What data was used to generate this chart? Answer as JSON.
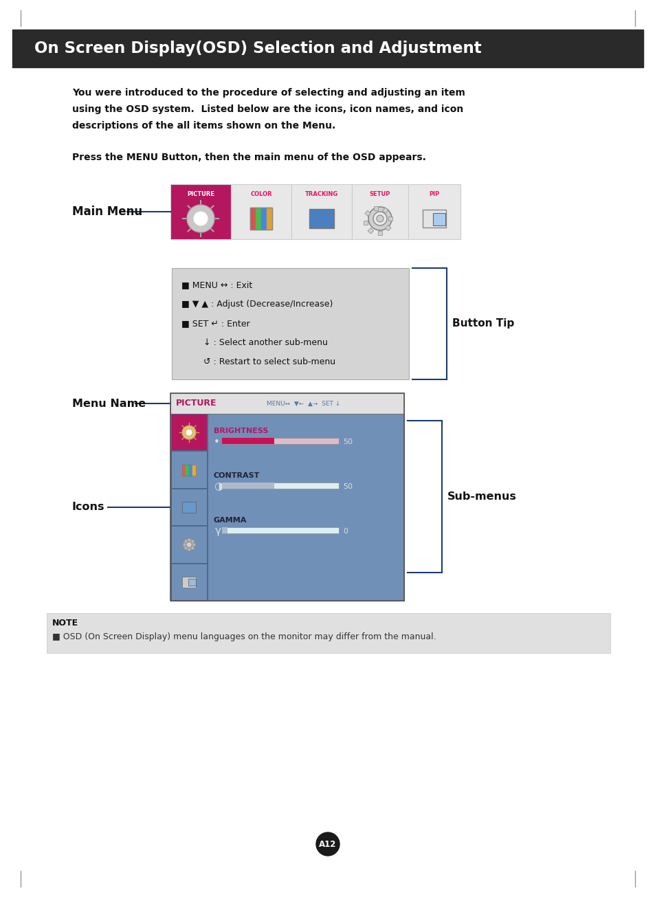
{
  "title": "On Screen Display(OSD) Selection and Adjustment",
  "title_bg": "#2a2a2a",
  "title_color": "#ffffff",
  "page_bg": "#ffffff",
  "body_text1_line1": "You were introduced to the procedure of selecting and adjusting an item",
  "body_text1_line2": "using the OSD system.  Listed below are the icons, icon names, and icon",
  "body_text1_line3": "descriptions of the all items shown on the Menu.",
  "body_text2": "Press the MENU Button, then the main menu of the OSD appears.",
  "main_menu_label": "Main Menu",
  "menu_tabs": [
    "PICTURE",
    "COLOR",
    "TRACKING",
    "SETUP",
    "PIP"
  ],
  "picture_bg": "#b5175e",
  "tab_bg": "#e8e8e8",
  "button_tip_label": "Button Tip",
  "menu_name_label": "Menu Name",
  "icons_label": "Icons",
  "submenus_label": "Sub-menus",
  "button_tip_lines": [
    "■ MENU ↔ : Exit",
    "■ ▼ ▲ : Adjust (Decrease/Increase)",
    "■ SET ↵ : Enter",
    "        ↓ : Select another sub-menu",
    "        ↺ : Restart to select sub-menu"
  ],
  "note_title": "NOTE",
  "note_text": "■ OSD (On Screen Display) menu languages on the monitor may differ from the manual.",
  "page_number": "A12",
  "osd_header_color": "#b5175e",
  "osd_bg_color": "#7090b8",
  "osd_dark_panel": "#3d6080",
  "line_color": "#1a3c6e"
}
